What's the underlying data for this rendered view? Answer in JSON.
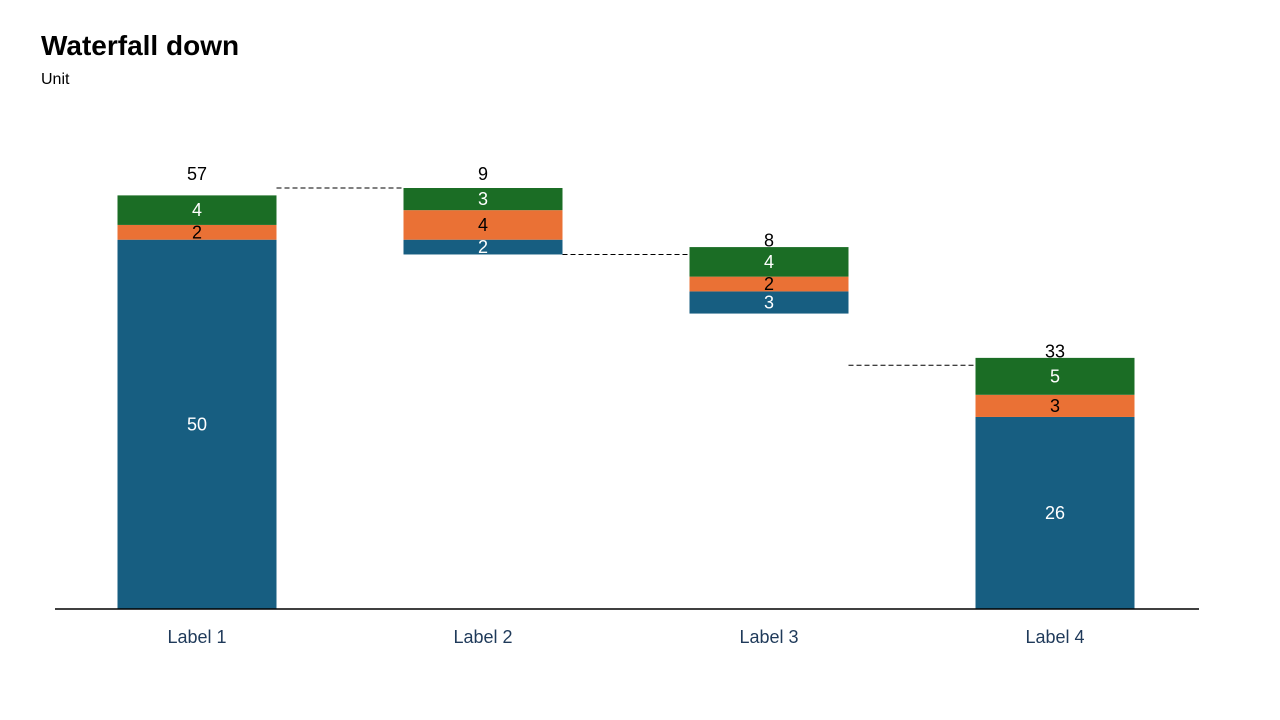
{
  "title": "Waterfall down",
  "subtitle": "Unit",
  "chart_data": {
    "type": "bar",
    "subtype": "stacked-waterfall",
    "title": "Waterfall down",
    "subtitle": "Unit",
    "categories": [
      "Label 1",
      "Label 2",
      "Label 3",
      "Label 4"
    ],
    "totals": [
      57,
      9,
      8,
      33
    ],
    "series": [
      {
        "values": [
          50,
          2,
          3,
          26
        ],
        "color": "#175e81"
      },
      {
        "values": [
          2,
          4,
          2,
          3
        ],
        "color": "#ea7135"
      },
      {
        "values": [
          4,
          3,
          4,
          5
        ],
        "color": "#1b6d25"
      }
    ],
    "bar_kinds": [
      "total",
      "decrease",
      "decrease",
      "total"
    ],
    "ylim": [
      0,
      57
    ],
    "connectors": "dashed",
    "grid": false,
    "legend": "none"
  }
}
